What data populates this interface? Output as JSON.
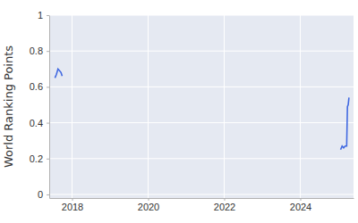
{
  "chart_data": {
    "type": "line",
    "y_label": "World Ranking Points",
    "x": [
      2017.55,
      2017.59,
      2017.63,
      2017.67,
      2017.71,
      2017.74,
      2021.0,
      2025.06,
      2025.1,
      2025.14,
      2025.18,
      2025.22,
      2025.24,
      2025.26,
      2025.28
    ],
    "values": [
      0.65,
      0.67,
      0.7,
      0.69,
      0.68,
      0.66,
      null,
      0.25,
      0.27,
      0.26,
      0.27,
      0.27,
      0.49,
      0.5,
      0.54
    ],
    "color": "#4169e1",
    "xlim": [
      2017.4,
      2025.4
    ],
    "xticks": [
      2018,
      2020,
      2022,
      2024
    ],
    "ylim": [
      -0.02,
      1.0
    ],
    "yticks": [
      0,
      0.2,
      0.4,
      0.6,
      0.8,
      1
    ],
    "grid": true
  }
}
